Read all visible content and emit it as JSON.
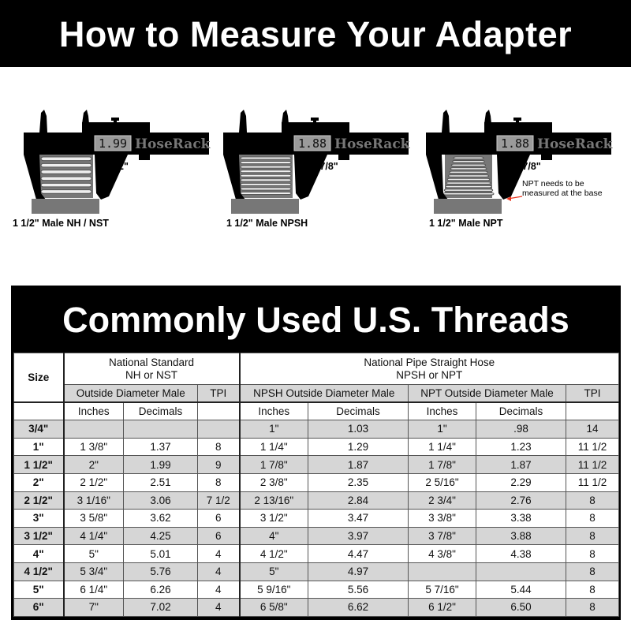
{
  "header": {
    "title": "How to Measure Your Adapter"
  },
  "calipers": [
    {
      "readout": "1.99",
      "brand": "HoseRack",
      "measure": "2\"",
      "label": "1 1/2\" Male NH / NST",
      "thread": "straight"
    },
    {
      "readout": "1.88",
      "brand": "HoseRack",
      "measure": "1 7/8\"",
      "label": "1 1/2\" Male NPSH",
      "thread": "straight"
    },
    {
      "readout": "1.88",
      "brand": "HoseRack",
      "measure": "1 7/8\"",
      "label": "1 1/2\" Male NPT",
      "thread": "tapered",
      "note": [
        "NPT needs to be",
        "measured at the base"
      ],
      "note_arrow_color": "#e8331c"
    }
  ],
  "table": {
    "title": "Commonly Used U.S. Threads",
    "size_header": "Size",
    "ns_group": [
      "National Standard",
      "NH or NST"
    ],
    "np_group": [
      "National Pipe Straight Hose",
      "NPSH or NPT"
    ],
    "ns_od": "Outside Diameter Male",
    "ns_tpi": "TPI",
    "npsh_od": "NPSH Outside Diameter Male",
    "npt_od": "NPT Outside Diameter Male",
    "np_tpi": "TPI",
    "sub": [
      "Inches",
      "Decimals",
      "Inches",
      "Decimals",
      "Inches",
      "Decimals"
    ],
    "rows": [
      [
        "3/4\"",
        "",
        "",
        "",
        "1\"",
        "1.03",
        "1\"",
        ".98",
        "14"
      ],
      [
        "1\"",
        "1 3/8\"",
        "1.37",
        "8",
        "1 1/4\"",
        "1.29",
        "1 1/4\"",
        "1.23",
        "11 1/2"
      ],
      [
        "1 1/2\"",
        "2\"",
        "1.99",
        "9",
        "1 7/8\"",
        "1.87",
        "1 7/8\"",
        "1.87",
        "11 1/2"
      ],
      [
        "2\"",
        "2 1/2\"",
        "2.51",
        "8",
        "2 3/8\"",
        "2.35",
        "2 5/16\"",
        "2.29",
        "11 1/2"
      ],
      [
        "2 1/2\"",
        "3 1/16\"",
        "3.06",
        "7 1/2",
        "2 13/16\"",
        "2.84",
        "2 3/4\"",
        "2.76",
        "8"
      ],
      [
        "3\"",
        "3 5/8\"",
        "3.62",
        "6",
        "3 1/2\"",
        "3.47",
        "3 3/8\"",
        "3.38",
        "8"
      ],
      [
        "3 1/2\"",
        "4 1/4\"",
        "4.25",
        "6",
        "4\"",
        "3.97",
        "3 7/8\"",
        "3.88",
        "8"
      ],
      [
        "4\"",
        "5\"",
        "5.01",
        "4",
        "4 1/2\"",
        "4.47",
        "4 3/8\"",
        "4.38",
        "8"
      ],
      [
        "4 1/2\"",
        "5 3/4\"",
        "5.76",
        "4",
        "5\"",
        "4.97",
        "",
        "",
        "8"
      ],
      [
        "5\"",
        "6 1/4\"",
        "6.26",
        "4",
        "5 9/16\"",
        "5.56",
        "5 7/16\"",
        "5.44",
        "8"
      ],
      [
        "6\"",
        "7\"",
        "7.02",
        "4",
        "6 5/8\"",
        "6.62",
        "6 1/2\"",
        "6.50",
        "8"
      ]
    ]
  },
  "colors": {
    "banner": "#000000",
    "row_shade": "#d6d6d6",
    "readout_bg": "#9a9a9a",
    "base": "#777777"
  }
}
